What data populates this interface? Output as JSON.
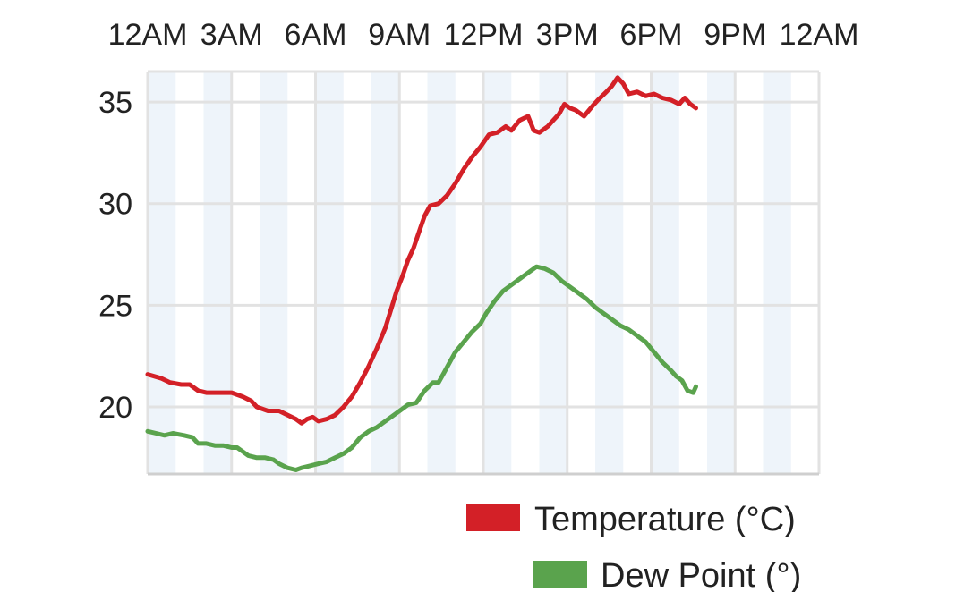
{
  "chart_data": {
    "type": "line",
    "x_ticks": [
      "12AM",
      "3AM",
      "6AM",
      "9AM",
      "12PM",
      "3PM",
      "6PM",
      "9PM",
      "12AM"
    ],
    "y_ticks": [
      "35",
      "30",
      "25",
      "20"
    ],
    "xlim_hours": [
      0,
      24
    ],
    "ylim": [
      16.7,
      36.5
    ],
    "grid": true,
    "legend_position": "bottom-right",
    "series": [
      {
        "name": "Temperature (°C)",
        "color": "#d32027",
        "points": [
          [
            0.0,
            21.6
          ],
          [
            0.5,
            21.4
          ],
          [
            0.8,
            21.2
          ],
          [
            1.2,
            21.1
          ],
          [
            1.5,
            21.1
          ],
          [
            1.8,
            20.8
          ],
          [
            2.1,
            20.7
          ],
          [
            2.5,
            20.7
          ],
          [
            3.0,
            20.7
          ],
          [
            3.4,
            20.5
          ],
          [
            3.7,
            20.3
          ],
          [
            3.9,
            20.0
          ],
          [
            4.3,
            19.8
          ],
          [
            4.7,
            19.8
          ],
          [
            5.0,
            19.6
          ],
          [
            5.3,
            19.4
          ],
          [
            5.5,
            19.2
          ],
          [
            5.7,
            19.4
          ],
          [
            5.9,
            19.5
          ],
          [
            6.1,
            19.3
          ],
          [
            6.4,
            19.4
          ],
          [
            6.7,
            19.6
          ],
          [
            7.0,
            20.0
          ],
          [
            7.3,
            20.5
          ],
          [
            7.6,
            21.2
          ],
          [
            7.9,
            22.0
          ],
          [
            8.2,
            22.9
          ],
          [
            8.5,
            23.9
          ],
          [
            8.7,
            24.8
          ],
          [
            8.9,
            25.7
          ],
          [
            9.1,
            26.4
          ],
          [
            9.3,
            27.2
          ],
          [
            9.5,
            27.8
          ],
          [
            9.7,
            28.6
          ],
          [
            9.9,
            29.4
          ],
          [
            10.1,
            29.9
          ],
          [
            10.4,
            30.0
          ],
          [
            10.7,
            30.4
          ],
          [
            11.0,
            31.0
          ],
          [
            11.3,
            31.7
          ],
          [
            11.6,
            32.3
          ],
          [
            11.9,
            32.8
          ],
          [
            12.2,
            33.4
          ],
          [
            12.5,
            33.5
          ],
          [
            12.8,
            33.8
          ],
          [
            13.0,
            33.6
          ],
          [
            13.3,
            34.1
          ],
          [
            13.6,
            34.3
          ],
          [
            13.8,
            33.6
          ],
          [
            14.0,
            33.5
          ],
          [
            14.3,
            33.8
          ],
          [
            14.5,
            34.1
          ],
          [
            14.7,
            34.4
          ],
          [
            14.9,
            34.9
          ],
          [
            15.1,
            34.7
          ],
          [
            15.3,
            34.6
          ],
          [
            15.6,
            34.3
          ],
          [
            15.9,
            34.8
          ],
          [
            16.1,
            35.1
          ],
          [
            16.4,
            35.5
          ],
          [
            16.6,
            35.8
          ],
          [
            16.8,
            36.2
          ],
          [
            17.0,
            35.9
          ],
          [
            17.2,
            35.4
          ],
          [
            17.5,
            35.5
          ],
          [
            17.8,
            35.3
          ],
          [
            18.1,
            35.4
          ],
          [
            18.4,
            35.2
          ],
          [
            18.7,
            35.1
          ],
          [
            19.0,
            34.9
          ],
          [
            19.2,
            35.2
          ],
          [
            19.4,
            34.9
          ],
          [
            19.6,
            34.7
          ]
        ]
      },
      {
        "name": "Dew Point (°)",
        "color": "#5aa34d",
        "points": [
          [
            0.0,
            18.8
          ],
          [
            0.3,
            18.7
          ],
          [
            0.6,
            18.6
          ],
          [
            0.9,
            18.7
          ],
          [
            1.3,
            18.6
          ],
          [
            1.6,
            18.5
          ],
          [
            1.8,
            18.2
          ],
          [
            2.1,
            18.2
          ],
          [
            2.4,
            18.1
          ],
          [
            2.7,
            18.1
          ],
          [
            3.0,
            18.0
          ],
          [
            3.2,
            18.0
          ],
          [
            3.4,
            17.8
          ],
          [
            3.6,
            17.6
          ],
          [
            3.9,
            17.5
          ],
          [
            4.2,
            17.5
          ],
          [
            4.5,
            17.4
          ],
          [
            4.7,
            17.2
          ],
          [
            5.0,
            17.0
          ],
          [
            5.3,
            16.9
          ],
          [
            5.5,
            17.0
          ],
          [
            5.8,
            17.1
          ],
          [
            6.1,
            17.2
          ],
          [
            6.4,
            17.3
          ],
          [
            6.7,
            17.5
          ],
          [
            7.0,
            17.7
          ],
          [
            7.3,
            18.0
          ],
          [
            7.6,
            18.5
          ],
          [
            7.9,
            18.8
          ],
          [
            8.2,
            19.0
          ],
          [
            8.5,
            19.3
          ],
          [
            8.8,
            19.6
          ],
          [
            9.1,
            19.9
          ],
          [
            9.3,
            20.1
          ],
          [
            9.6,
            20.2
          ],
          [
            9.9,
            20.8
          ],
          [
            10.2,
            21.2
          ],
          [
            10.4,
            21.2
          ],
          [
            10.6,
            21.7
          ],
          [
            10.8,
            22.2
          ],
          [
            11.0,
            22.7
          ],
          [
            11.3,
            23.2
          ],
          [
            11.6,
            23.7
          ],
          [
            11.9,
            24.1
          ],
          [
            12.1,
            24.6
          ],
          [
            12.4,
            25.2
          ],
          [
            12.7,
            25.7
          ],
          [
            13.0,
            26.0
          ],
          [
            13.3,
            26.3
          ],
          [
            13.6,
            26.6
          ],
          [
            13.9,
            26.9
          ],
          [
            14.2,
            26.8
          ],
          [
            14.5,
            26.6
          ],
          [
            14.8,
            26.2
          ],
          [
            15.1,
            25.9
          ],
          [
            15.4,
            25.6
          ],
          [
            15.7,
            25.3
          ],
          [
            16.0,
            24.9
          ],
          [
            16.3,
            24.6
          ],
          [
            16.6,
            24.3
          ],
          [
            16.9,
            24.0
          ],
          [
            17.2,
            23.8
          ],
          [
            17.5,
            23.5
          ],
          [
            17.8,
            23.2
          ],
          [
            18.1,
            22.7
          ],
          [
            18.4,
            22.2
          ],
          [
            18.7,
            21.8
          ],
          [
            18.9,
            21.5
          ],
          [
            19.1,
            21.3
          ],
          [
            19.3,
            20.8
          ],
          [
            19.5,
            20.7
          ],
          [
            19.6,
            21.0
          ]
        ]
      }
    ]
  }
}
